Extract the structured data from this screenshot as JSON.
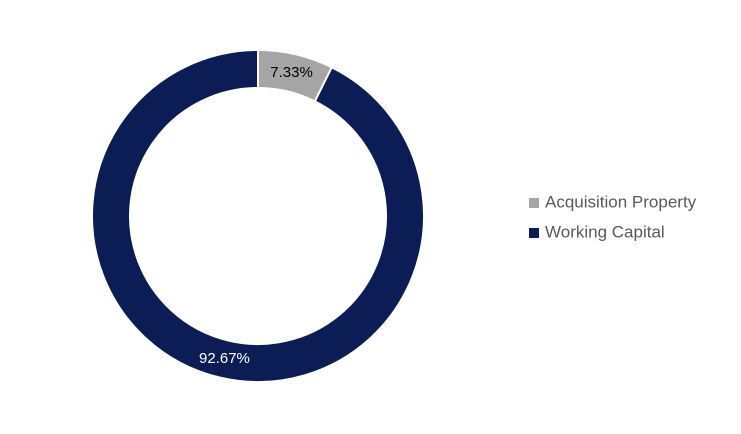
{
  "chart_data": {
    "type": "donut",
    "categories": [
      "Acquisition Property",
      "Working Capital"
    ],
    "values": [
      7.33,
      92.67
    ],
    "value_labels": [
      "7.33%",
      "92.67%"
    ],
    "colors": [
      "#a5a5a5",
      "#0b1d54"
    ],
    "legend": "right"
  }
}
